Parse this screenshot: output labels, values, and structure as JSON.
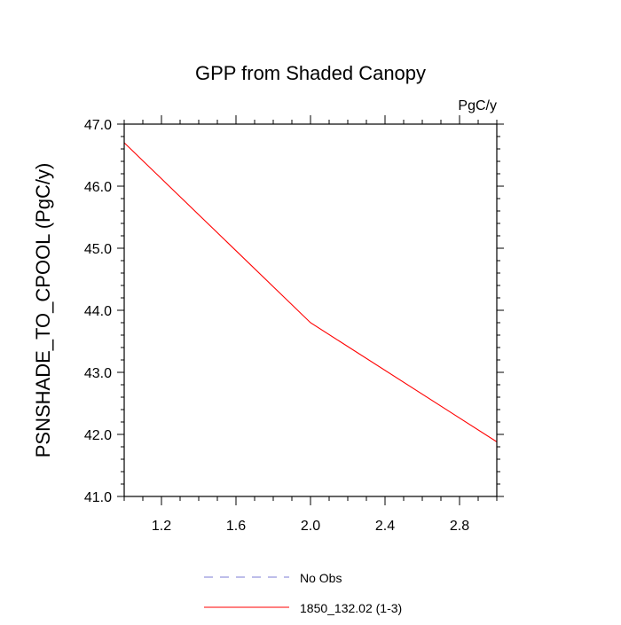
{
  "chart_data": {
    "type": "line",
    "title": "GPP from Shaded Canopy",
    "units_label": "PgC/y",
    "ylabel": "PSNSHADE_TO_CPOOL  (PgC/y)",
    "xlabel": "",
    "xlim": [
      1.0,
      3.0
    ],
    "ylim": [
      41.0,
      47.0
    ],
    "x_ticks": [
      1.2,
      1.6,
      2.0,
      2.4,
      2.8
    ],
    "x_tick_labels": [
      "1.2",
      "1.6",
      "2.0",
      "2.4",
      "2.8"
    ],
    "y_ticks": [
      41.0,
      42.0,
      43.0,
      44.0,
      45.0,
      46.0,
      47.0
    ],
    "y_tick_labels": [
      "41.0",
      "42.0",
      "43.0",
      "44.0",
      "45.0",
      "46.0",
      "47.0"
    ],
    "grid": false,
    "legend_placement": "bottom",
    "series": [
      {
        "name": "1850_132.02 (1-3)",
        "color": "#ff0000",
        "dash": "solid",
        "x": [
          1.0,
          2.0,
          3.0
        ],
        "y": [
          46.7,
          43.8,
          41.88
        ]
      }
    ],
    "legend": [
      {
        "label": "No Obs",
        "color": "#7b7bd6",
        "dash": "dashed"
      },
      {
        "label": "1850_132.02 (1-3)",
        "color": "#ff0000",
        "dash": "solid"
      }
    ]
  }
}
